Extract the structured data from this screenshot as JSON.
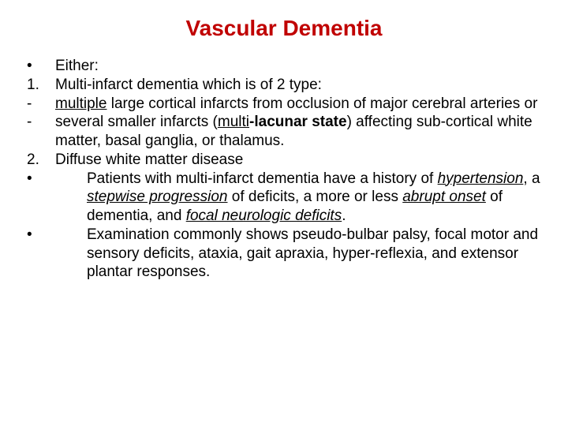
{
  "title": "Vascular Dementia",
  "items": [
    {
      "marker": "•",
      "text": "Either:"
    },
    {
      "marker": "1.",
      "text": "Multi-infarct dementia which is of 2 type:"
    },
    {
      "marker": "-",
      "html": "<span class='under'>multiple</span> large cortical infarcts from occlusion of major cerebral arteries or"
    },
    {
      "marker": "-",
      "html": "several smaller infarcts (<span class='under'>multi</span><span class='bold'>-lacunar state</span>) affecting sub-cortical white matter, basal ganglia, or thalamus."
    },
    {
      "marker": "2.",
      "text": " Diffuse white matter disease"
    },
    {
      "marker": "•",
      "html": "Patients with multi-infarct dementia have a history of <span class='under ital'>hypertension</span>, a <span class='under ital'>stepwise progression</span> of deficits, a more or less <span class='under ital'>abrupt onset</span> of dementia, and <span class='under ital'>focal neurologic deficits</span>.",
      "indent": true
    },
    {
      "marker": "•",
      "html": "Examination commonly shows pseudo-bulbar palsy, focal motor and sensory deficits, ataxia, gait apraxia, hyper-reflexia, and extensor plantar responses.",
      "indent": true
    }
  ]
}
